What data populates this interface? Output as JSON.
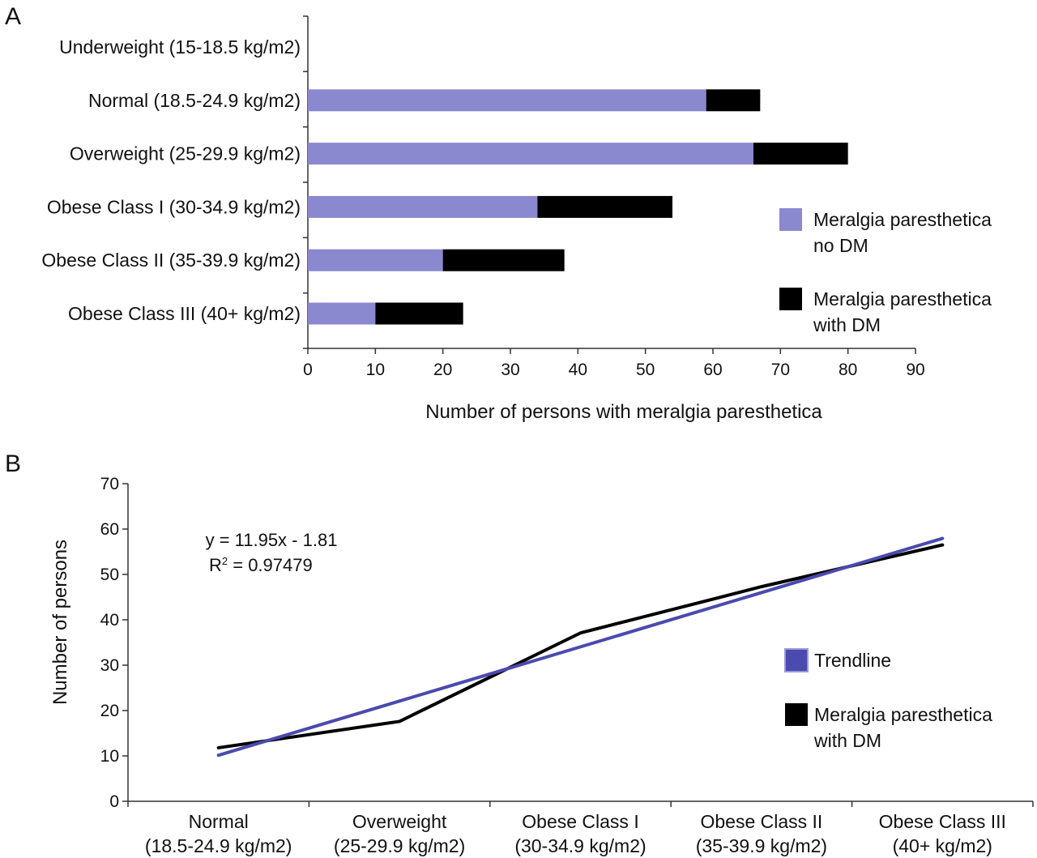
{
  "chart_data": [
    {
      "panel": "A",
      "type": "bar",
      "orientation": "horizontal",
      "stacked": true,
      "categories": [
        "Underweight (15-18.5 kg/m2)",
        "Normal (18.5-24.9 kg/m2)",
        "Overweight (25-29.9 kg/m2)",
        "Obese Class I (30-34.9 kg/m2)",
        "Obese Class II (35-39.9 kg/m2)",
        "Obese Class III (40+ kg/m2)"
      ],
      "series": [
        {
          "name_lines": [
            "Meralgia paresthetica",
            "no DM"
          ],
          "color": "#8a88cf",
          "values": [
            0,
            59,
            66,
            34,
            20,
            10
          ]
        },
        {
          "name_lines": [
            "Meralgia paresthetica",
            "with DM"
          ],
          "color": "#000000",
          "values": [
            0,
            8,
            14,
            20,
            18,
            13
          ]
        }
      ],
      "xlabel": "Number of persons with meralgia paresthetica",
      "xlim": [
        0,
        90
      ],
      "xticks": [
        0,
        10,
        20,
        30,
        40,
        50,
        60,
        70,
        80,
        90
      ],
      "legend": "right",
      "grid": false
    },
    {
      "panel": "B",
      "type": "line",
      "categories": [
        [
          "Normal",
          "(18.5-24.9 kg/m2)"
        ],
        [
          "Overweight",
          "(25-29.9 kg/m2)"
        ],
        [
          "Obese Class I",
          "(30-34.9 kg/m2)"
        ],
        [
          "Obese Class II",
          "(35-39.9 kg/m2)"
        ],
        [
          "Obese Class III",
          "(40+ kg/m2)"
        ]
      ],
      "series": [
        {
          "name_lines": [
            "Meralgia paresthetica",
            "with DM"
          ],
          "color": "#000000",
          "values": [
            11.8,
            17.6,
            37.1,
            47.3,
            56.5
          ]
        },
        {
          "name_lines": [
            "Trendline"
          ],
          "color": "#4a4aaf",
          "type": "trendline",
          "values": [
            10.14,
            22.09,
            34.04,
            45.99,
            57.94
          ]
        }
      ],
      "annotation": [
        "y = 11.95x - 1.81",
        "R",
        "2",
        " = 0.97479"
      ],
      "ylabel": "Number of persons",
      "ylim": [
        0,
        70
      ],
      "yticks": [
        0,
        10,
        20,
        30,
        40,
        50,
        60,
        70
      ],
      "legend": "right",
      "grid": false
    }
  ]
}
